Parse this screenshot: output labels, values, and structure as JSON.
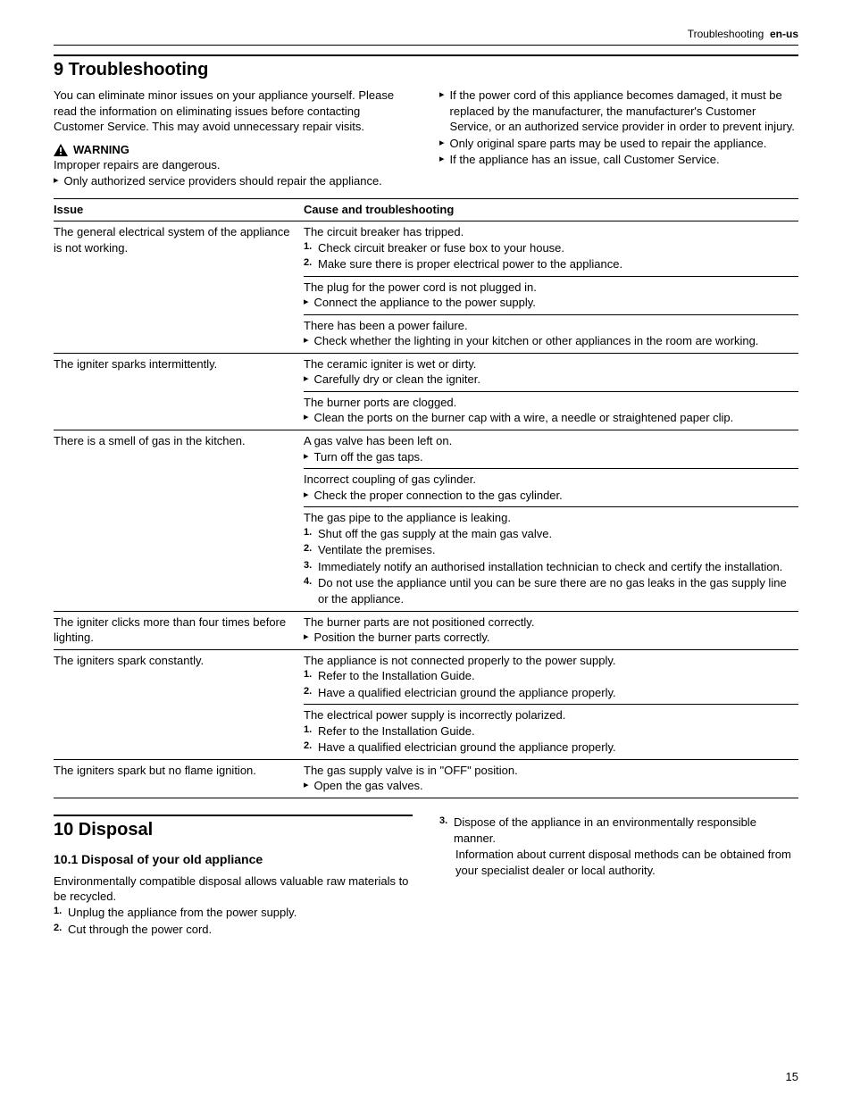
{
  "header": {
    "section": "Troubleshooting",
    "lang": "en-us"
  },
  "s9": {
    "title": "9  Troubleshooting",
    "intro": "You can eliminate minor issues on your appliance yourself. Please read the information on eliminating issues before contacting Customer Service. This may avoid unnecessary repair visits.",
    "warning_label": "WARNING",
    "warning_text": "Improper repairs are dangerous.",
    "warning_items": [
      "Only authorized service providers should repair the appliance.",
      "If the power cord of this appliance becomes damaged, it must be replaced by the manufacturer, the manufacturer's Customer Service, or an authorized service provider in order to prevent injury.",
      "Only original spare parts may be used to repair the appliance.",
      "If the appliance has an issue, call Customer Service."
    ],
    "table_headers": {
      "issue": "Issue",
      "cause": "Cause and troubleshooting"
    },
    "rows": [
      {
        "issue": "The general electrical system of the appliance is not working.",
        "cells": [
          {
            "lead": "The circuit breaker has tripped.",
            "steps": [
              "Check circuit breaker or fuse box to your house.",
              "Make sure there is proper electrical power to the appliance."
            ]
          },
          {
            "lead": "The plug for the power cord is not plugged in.",
            "bullets": [
              "Connect the appliance to the power supply."
            ]
          },
          {
            "lead": "There has been a power failure.",
            "bullets": [
              "Check whether the lighting in your kitchen or other appliances in the room are working."
            ]
          }
        ]
      },
      {
        "issue": "The igniter sparks intermittently.",
        "cells": [
          {
            "lead": "The ceramic igniter is wet or dirty.",
            "bullets": [
              "Carefully dry or clean the igniter."
            ]
          },
          {
            "lead": "The burner ports are clogged.",
            "bullets": [
              "Clean the ports on the burner cap with a wire, a needle or straightened paper clip."
            ]
          }
        ]
      },
      {
        "issue": "There is a smell of gas in the kitchen.",
        "cells": [
          {
            "lead": "A gas valve has been left on.",
            "bullets": [
              "Turn off the gas taps."
            ]
          },
          {
            "lead": "Incorrect coupling of gas cylinder.",
            "bullets": [
              "Check the proper connection to the gas cylinder."
            ]
          },
          {
            "lead": "The gas pipe to the appliance is leaking.",
            "steps": [
              "Shut off the gas supply at the main gas valve.",
              "Ventilate the premises.",
              "Immediately notify an authorised installation technician to check and certify the installation.",
              "Do not use the appliance until you can be sure there are no gas leaks in the gas supply line or the appliance."
            ]
          }
        ]
      },
      {
        "issue": "The igniter clicks more than four times before lighting.",
        "cells": [
          {
            "lead": "The burner parts are not positioned correctly.",
            "bullets": [
              "Position the burner parts correctly."
            ]
          }
        ]
      },
      {
        "issue": "The igniters spark constantly.",
        "cells": [
          {
            "lead": "The appliance is not connected properly to the power supply.",
            "steps": [
              "Refer to the Installation Guide.",
              "Have a qualified electrician ground the appliance properly."
            ]
          },
          {
            "lead": "The electrical power supply is incorrectly polarized.",
            "steps": [
              "Refer to the Installation Guide.",
              "Have a qualified electrician ground the appliance properly."
            ]
          }
        ]
      },
      {
        "issue": "The igniters spark but no flame ignition.",
        "cells": [
          {
            "lead": "The gas supply valve is in \"OFF\" position.",
            "bullets": [
              "Open the gas valves."
            ]
          }
        ]
      }
    ]
  },
  "s10": {
    "title": "10  Disposal",
    "sub_title": "10.1  Disposal of your old appliance",
    "intro": "Environmentally compatible disposal allows valuable raw materials to be recycled.",
    "steps_left": [
      "Unplug the appliance from the power supply.",
      "Cut through the power cord."
    ],
    "step3": "Dispose of the appliance in an environmentally responsible manner.",
    "step3_extra": "Information about current disposal methods can be obtained from your specialist dealer or local authority."
  },
  "page_number": "15"
}
